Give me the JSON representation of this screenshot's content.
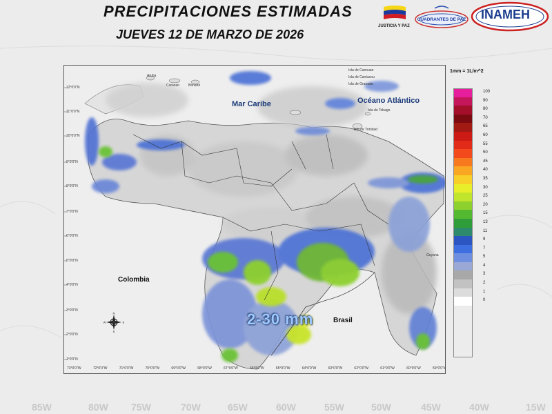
{
  "header": {
    "title": "PRECIPITACIONES  ESTIMADAS",
    "subtitle": "JUEVES 12 DE MARZO DE 2026",
    "flag_caption": "JUSTICIA Y PAZ",
    "cuadrantes_logo_text": "CUADRANTES DE PAZ",
    "inameh_logo_text": "INAMEH"
  },
  "map": {
    "sea_label": "Mar Caribe",
    "ocean_label": "Océano Atlántico",
    "country_colombia": "Colombia",
    "country_brasil": "Brasil",
    "highlight_text": "2-30 mm",
    "islands": {
      "canouan": "Isla de Canouan",
      "carriacou": "Isla de Carriacou",
      "granada": "Isla de Granada",
      "tobago": "Isla de Tobago",
      "trinidad": "Isla de Trinidad",
      "aruba": "Aruba",
      "curazao": "Curazao",
      "bonaire": "Bonaire",
      "guyana": "Guyana"
    },
    "latitudes": [
      "12°0'0\"N",
      "11°0'0\"N",
      "10°0'0\"N",
      "9°0'0\"N",
      "8°0'0\"N",
      "7°0'0\"N",
      "6°0'0\"N",
      "5°0'0\"N",
      "4°0'0\"N",
      "3°0'0\"N",
      "2°0'0\"N",
      "1°0'0\"N"
    ],
    "longitudes": [
      "73°0'0\"W",
      "72°0'0\"W",
      "71°0'0\"W",
      "70°0'0\"W",
      "69°0'0\"W",
      "68°0'0\"W",
      "67°0'0\"W",
      "66°0'0\"W",
      "65°0'0\"W",
      "64°0'0\"W",
      "63°0'0\"W",
      "62°0'0\"W",
      "61°0'0\"W",
      "60°0'0\"W",
      "59°0'0\"W"
    ],
    "compass": {
      "n": "N",
      "s": "S",
      "e": "E",
      "w": "W"
    }
  },
  "legend": {
    "unit_label": "1mm = 1L/m^2",
    "items": [
      {
        "value": "100",
        "color": "#e61e9b"
      },
      {
        "value": "90",
        "color": "#c4165a"
      },
      {
        "value": "80",
        "color": "#a30f2a"
      },
      {
        "value": "70",
        "color": "#7a0a10"
      },
      {
        "value": "65",
        "color": "#a21a14"
      },
      {
        "value": "60",
        "color": "#cc1a14"
      },
      {
        "value": "55",
        "color": "#e22a18"
      },
      {
        "value": "50",
        "color": "#f24a1a"
      },
      {
        "value": "45",
        "color": "#f77a1e"
      },
      {
        "value": "40",
        "color": "#f9a623"
      },
      {
        "value": "35",
        "color": "#f7cf28"
      },
      {
        "value": "30",
        "color": "#e9ee2a"
      },
      {
        "value": "25",
        "color": "#c1e42c"
      },
      {
        "value": "20",
        "color": "#8ed02e"
      },
      {
        "value": "15",
        "color": "#53b930"
      },
      {
        "value": "13",
        "color": "#2f9e3a"
      },
      {
        "value": "11",
        "color": "#2e8a6c"
      },
      {
        "value": "9",
        "color": "#2b55c0"
      },
      {
        "value": "7",
        "color": "#3d6fe0"
      },
      {
        "value": "5",
        "color": "#6e8fe0"
      },
      {
        "value": "4",
        "color": "#9aa8d6"
      },
      {
        "value": "3",
        "color": "#a8a8a8"
      },
      {
        "value": "2",
        "color": "#c2c2c2"
      },
      {
        "value": "1",
        "color": "#dcdcdc"
      },
      {
        "value": "0",
        "color": "#ffffff"
      }
    ]
  },
  "footer": {
    "ticks": [
      "85W",
      "80W",
      "75W",
      "70W",
      "65W",
      "60W",
      "55W",
      "50W",
      "45W",
      "40W",
      "15W"
    ]
  }
}
